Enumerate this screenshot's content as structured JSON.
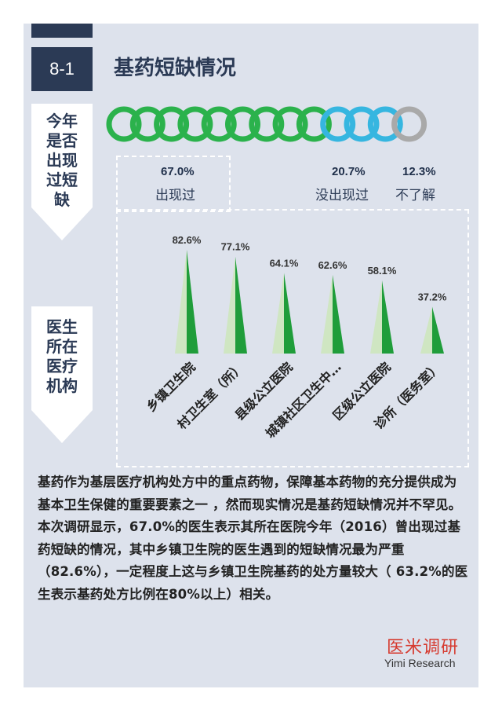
{
  "section": {
    "number": "8-1",
    "title": "基药短缺情况"
  },
  "side_labels": {
    "shortage_question": [
      "今年",
      "是否",
      "出现",
      "过短",
      "缺"
    ],
    "institution": [
      "医生",
      "所在",
      "医疗",
      "机构"
    ]
  },
  "summary": {
    "rings": {
      "appeared": 9,
      "not_appeared": 3,
      "unknown": 1
    },
    "colors": {
      "appeared": "#2bb24c",
      "not_appeared": "#36b6e0",
      "unknown": "#a9a9a9"
    },
    "items": [
      {
        "pct": "67.0%",
        "label": "出现过"
      },
      {
        "pct": "20.7%",
        "label": "没出现过"
      },
      {
        "pct": "12.3%",
        "label": "不了解"
      }
    ]
  },
  "chart_data": {
    "type": "bar",
    "categories": [
      "乡镇卫生院",
      "村卫生室（所）",
      "县级公立医院",
      "城镇社区卫生中…",
      "区级公立医院",
      "诊所（医务室）"
    ],
    "values": [
      82.6,
      77.1,
      64.1,
      62.6,
      58.1,
      37.2
    ],
    "value_labels": [
      "82.6%",
      "77.1%",
      "64.1%",
      "62.6%",
      "58.1%",
      "37.2%"
    ],
    "ylim": [
      0,
      100
    ],
    "colors": {
      "dark": "#1f9d3a",
      "light": "#cfe6c2"
    }
  },
  "paragraph": "基药作为基层医疗机构处方中的重点药物，保障基本药物的充分提供成为基本卫生保健的重要要素之一 ，然而现实情况是基药短缺情况并不罕见。本次调研显示，67.0%的医生表示其所在医院今年（2016）曾出现过基药短缺的情况，其中乡镇卫生院的医生遇到的短缺情况最为严重（82.6%），一定程度上这与乡镇卫生院基药的处方量较大（ 63.2%的医生表示基药处方比例在80%以上）相关。",
  "brand": {
    "cn": "医米调研",
    "en": "Yimi Research"
  }
}
